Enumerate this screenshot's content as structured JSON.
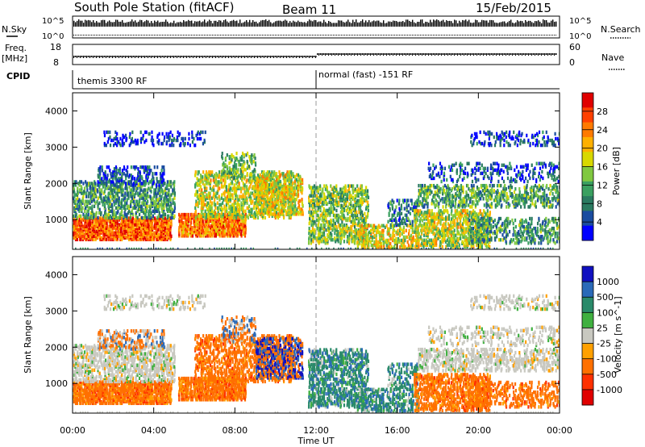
{
  "header": {
    "station": "South Pole Station (fitACF)",
    "beam": "Beam 11",
    "date": "15/Feb/2015"
  },
  "strip_panels": {
    "nsky": {
      "label": "N.Sky",
      "ticks": [
        "10^5",
        "10^0"
      ]
    },
    "nsearch": {
      "label": "N.Search",
      "ticks": [
        "10^5",
        "10^0"
      ]
    },
    "freq": {
      "label_line1": "Freq.",
      "label_line2": "[MHz]",
      "ticks": [
        "18",
        "8"
      ]
    },
    "nave": {
      "label": "Nave",
      "ticks": [
        "60",
        "0"
      ]
    },
    "cpid": {
      "label": "CPID",
      "mode1": "themis 3300 RF",
      "mode2": "normal (fast) -151 RF"
    }
  },
  "chart_data": [
    {
      "type": "heatmap",
      "name": "power",
      "ylabel": "Slant Range [km]",
      "ylim": [
        180,
        4500
      ],
      "y_ticks": [
        "1000",
        "2000",
        "3000",
        "4000"
      ],
      "colorbar": {
        "label": "Power [dB]",
        "ticks": [
          "28",
          "24",
          "20",
          "16",
          "12",
          "8",
          "4"
        ],
        "colors": [
          "#e00000",
          "#ff4000",
          "#ff7a00",
          "#ffb000",
          "#d8d800",
          "#80c840",
          "#3aa060",
          "#2a7a60",
          "#1a4ca0",
          "#0000ff"
        ]
      },
      "regions": [
        {
          "x0": 0.0,
          "x1": 5.2,
          "y0": 250,
          "y1": 2400,
          "level": "mixed"
        },
        {
          "x0": 5.2,
          "x1": 11.3,
          "y0": 350,
          "y1": 2900,
          "level": "mixed"
        },
        {
          "x0": 11.5,
          "x1": 17.0,
          "y0": 250,
          "y1": 2100,
          "level": "mixed"
        },
        {
          "x0": 17.0,
          "x1": 24.0,
          "y0": 200,
          "y1": 3500,
          "level": "mixed"
        }
      ]
    },
    {
      "type": "heatmap",
      "name": "velocity",
      "ylabel": "Slant Range [km]",
      "ylim": [
        180,
        4500
      ],
      "y_ticks": [
        "1000",
        "2000",
        "3000",
        "4000"
      ],
      "colorbar": {
        "label": "Velocity [m s^-1]",
        "ticks": [
          "1000",
          "500",
          "100",
          "25",
          "-25",
          "-100",
          "-500",
          "-1000"
        ],
        "colors": [
          "#1010c0",
          "#2a6ab8",
          "#2a8a6a",
          "#40b040",
          "#c8c8c0",
          "#ffa000",
          "#ff7000",
          "#ff3000",
          "#e00000"
        ]
      },
      "x_ticks": [
        "00:00",
        "04:00",
        "08:00",
        "12:00",
        "16:00",
        "20:00",
        "00:00"
      ],
      "xlabel": "Time UT"
    }
  ]
}
